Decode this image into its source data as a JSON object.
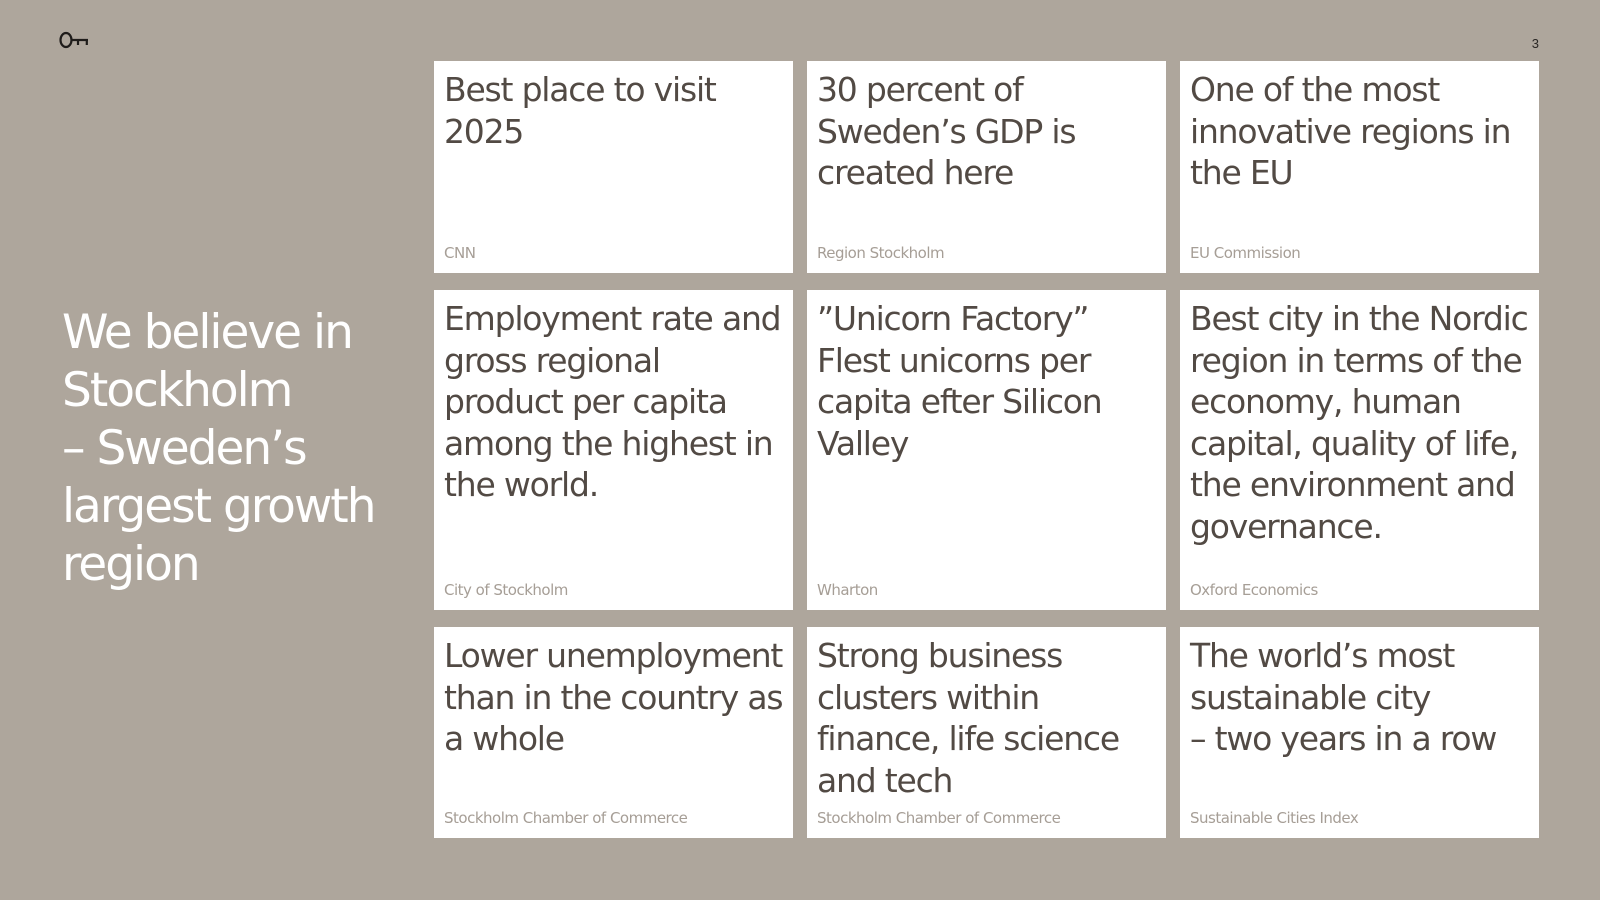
{
  "page_number": "3",
  "headline": "We believe in\nStockholm\n– Sweden’s\nlargest growth\nregion",
  "cards": [
    {
      "title": "Best place to visit\n2025",
      "source": "CNN"
    },
    {
      "title": "30 percent of\nSweden’s GDP is\ncreated here",
      "source": "Region Stockholm"
    },
    {
      "title": "One of the most\ninnovative regions in\nthe EU",
      "source": "EU Commission"
    },
    {
      "title": "Employment rate and\ngross regional\nproduct per capita\namong the highest in\nthe world.",
      "source": "City of Stockholm"
    },
    {
      "title": "”Unicorn Factory”\nFlest unicorns per\ncapita efter Silicon\nValley",
      "source": "Wharton"
    },
    {
      "title": "Best city in the Nordic\nregion in terms of the\neconomy, human\ncapital, quality of life,\nthe environment and\ngovernance.",
      "source": "Oxford Economics"
    },
    {
      "title": "Lower unemployment\nthan in the country as\na whole",
      "source": "Stockholm Chamber of Commerce"
    },
    {
      "title": "Strong business\nclusters within\nfinance, life science\nand tech",
      "source": "Stockholm Chamber of Commerce"
    },
    {
      "title": "The world’s most\nsustainable city\n– two years in a row",
      "source": "Sustainable Cities Index"
    }
  ],
  "logo_icon": "key-icon",
  "colors": {
    "background": "#aea69c",
    "card": "#ffffff",
    "card_title": "#524a44",
    "card_source": "#a69e96",
    "headline": "#ffffff"
  }
}
